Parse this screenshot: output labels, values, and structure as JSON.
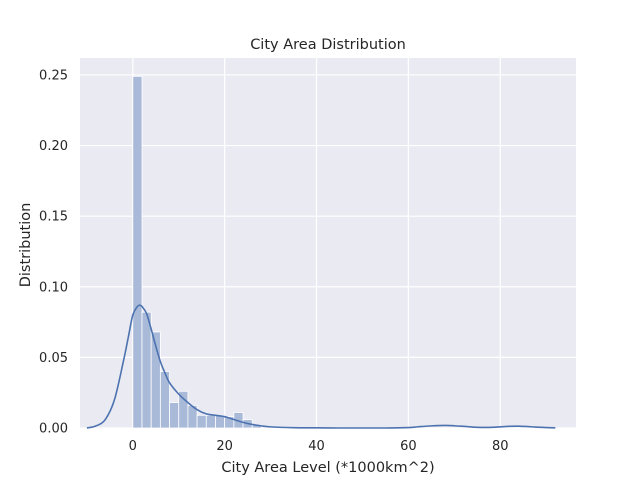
{
  "chart_data": {
    "type": "bar",
    "title": "City Area Distribution",
    "xlabel": "City Area Level (*1000km^2)",
    "ylabel": "Distribution",
    "xlim": [
      -11.5,
      96.5
    ],
    "ylim": [
      0,
      0.262
    ],
    "grid": true,
    "x_ticks": [
      0,
      20,
      40,
      60,
      80
    ],
    "y_ticks": [
      0.0,
      0.05,
      0.1,
      0.15,
      0.2,
      0.25
    ],
    "x_tick_labels": [
      "0",
      "20",
      "40",
      "60",
      "80"
    ],
    "y_tick_labels": [
      "0.00",
      "0.05",
      "0.10",
      "0.15",
      "0.20",
      "0.25"
    ],
    "colors": {
      "background": "#eaeaf2",
      "grid": "#ffffff",
      "hist": "#a9b9d8",
      "kde": "#4c72b0"
    },
    "histogram": {
      "bin_width": 2,
      "bins": [
        {
          "x0": 0,
          "value": 0.249
        },
        {
          "x0": 2,
          "value": 0.082
        },
        {
          "x0": 4,
          "value": 0.068
        },
        {
          "x0": 6,
          "value": 0.04
        },
        {
          "x0": 8,
          "value": 0.018
        },
        {
          "x0": 10,
          "value": 0.026
        },
        {
          "x0": 12,
          "value": 0.016
        },
        {
          "x0": 14,
          "value": 0.009
        },
        {
          "x0": 16,
          "value": 0.009
        },
        {
          "x0": 18,
          "value": 0.009
        },
        {
          "x0": 20,
          "value": 0.008
        },
        {
          "x0": 22,
          "value": 0.011
        },
        {
          "x0": 24,
          "value": 0.006
        },
        {
          "x0": 26,
          "value": 0.002
        }
      ]
    },
    "kde": {
      "x": [
        -10,
        -8,
        -6,
        -4,
        -2,
        -1,
        0,
        1,
        1.5,
        2,
        3,
        4,
        5,
        6,
        7,
        8,
        10,
        12,
        14,
        16,
        18,
        20,
        22,
        24,
        26,
        28,
        30,
        35,
        40,
        45,
        50,
        55,
        60,
        62,
        65,
        68,
        70,
        73,
        76,
        79,
        82,
        84,
        86,
        88,
        90,
        92
      ],
      "y": [
        0.0,
        0.0015,
        0.006,
        0.02,
        0.048,
        0.064,
        0.08,
        0.086,
        0.087,
        0.086,
        0.081,
        0.07,
        0.058,
        0.047,
        0.039,
        0.032,
        0.024,
        0.018,
        0.013,
        0.01,
        0.009,
        0.008,
        0.006,
        0.004,
        0.0025,
        0.0015,
        0.0008,
        0.0002,
        0.0001,
        0.0,
        0.0,
        0.0,
        0.0003,
        0.0008,
        0.0015,
        0.0018,
        0.0016,
        0.0009,
        0.0004,
        0.0006,
        0.0012,
        0.0013,
        0.001,
        0.0006,
        0.0003,
        0.0001
      ]
    }
  }
}
